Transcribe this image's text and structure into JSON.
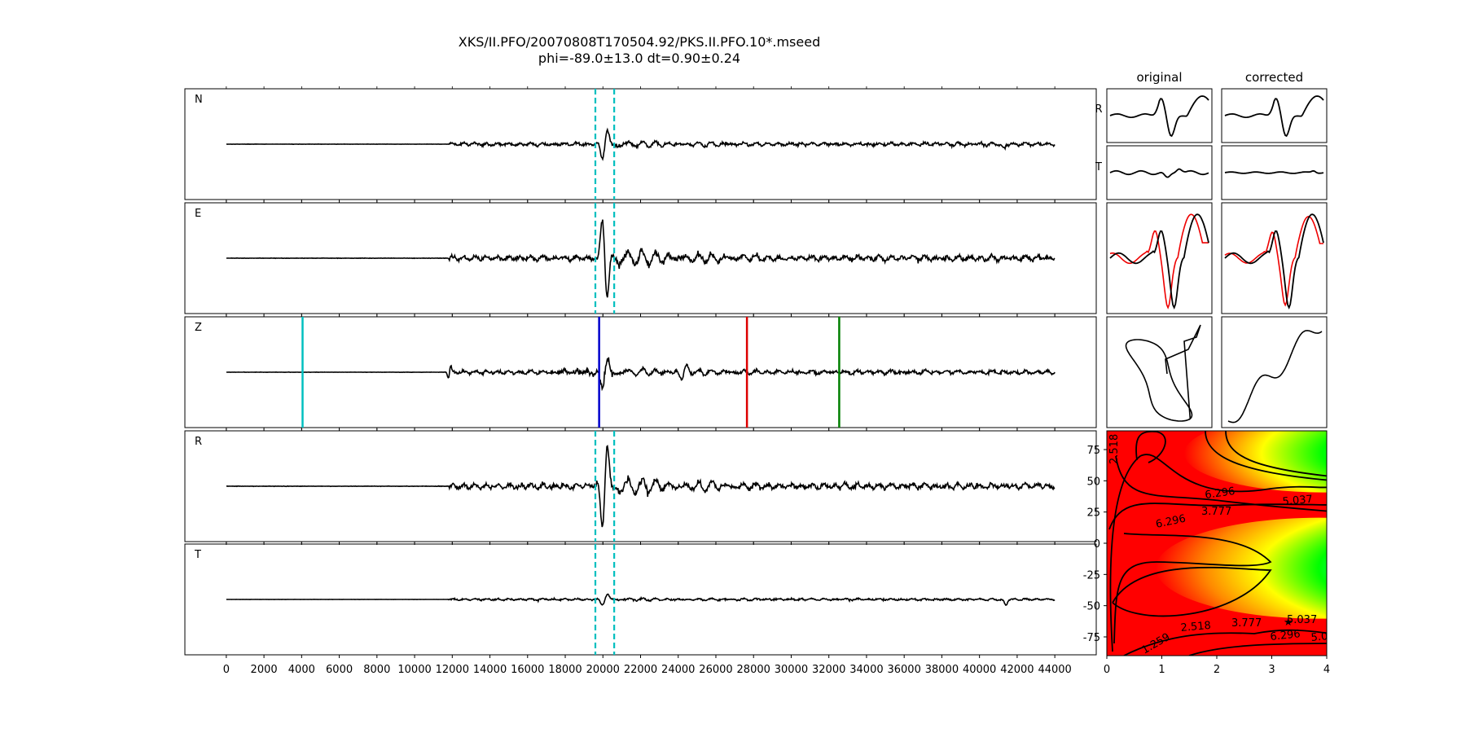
{
  "title": {
    "line1": "XKS/II.PFO/20070808T170504.92/PKS.II.PFO.10*.mseed",
    "line2": "phi=-89.0±13.0 dt=0.90±0.24"
  },
  "colors": {
    "trace": "#000000",
    "window_marker": "#00bfbf",
    "phase_cyan": "#00bfbf",
    "phase_blue": "#0000cc",
    "phase_red": "#dd0000",
    "phase_green": "#007f00",
    "compare_red": "#ee0000"
  },
  "chart_data": [
    {
      "type": "line",
      "name": "waveforms",
      "traces": [
        "N",
        "E",
        "Z",
        "R",
        "T"
      ],
      "x_ticks": [
        0,
        2000,
        4000,
        6000,
        8000,
        10000,
        12000,
        14000,
        16000,
        18000,
        20000,
        22000,
        24000,
        26000,
        28000,
        30000,
        32000,
        34000,
        36000,
        38000,
        40000,
        42000,
        44000
      ],
      "xlim": [
        -2200,
        46200
      ],
      "data_range": [
        0,
        44000
      ],
      "noise_onset": 11800,
      "window_markers": [
        19600,
        20600
      ],
      "phase_markers": [
        {
          "x": 4050,
          "color": "#00bfbf"
        },
        {
          "x": 19800,
          "color": "#0000cc"
        },
        {
          "x": 27650,
          "color": "#dd0000"
        },
        {
          "x": 32550,
          "color": "#007f00"
        }
      ],
      "amplitudes": {
        "N": 0.28,
        "E": 0.45,
        "Z": 0.33,
        "R": 0.45,
        "T": 0.16
      }
    },
    {
      "type": "line",
      "name": "particle-motion-panels",
      "column_titles": [
        "original",
        "corrected"
      ],
      "row_labels": [
        "R",
        "T"
      ]
    },
    {
      "type": "heatmap",
      "name": "error-surface",
      "x_ticks": [
        0,
        1,
        2,
        3,
        4
      ],
      "y_ticks": [
        75,
        50,
        25,
        0,
        -25,
        -50,
        -75
      ],
      "xlim": [
        0,
        4
      ],
      "ylim": [
        -90,
        90
      ],
      "contour_labels": [
        "2.518",
        "6.296",
        "5.037",
        "3.777",
        "6.296",
        "2.518",
        "3.777",
        "5.037",
        "6.296",
        "5.037",
        "1.259"
      ],
      "minimum": {
        "dt": 0.9,
        "phi": -89.0
      }
    }
  ]
}
